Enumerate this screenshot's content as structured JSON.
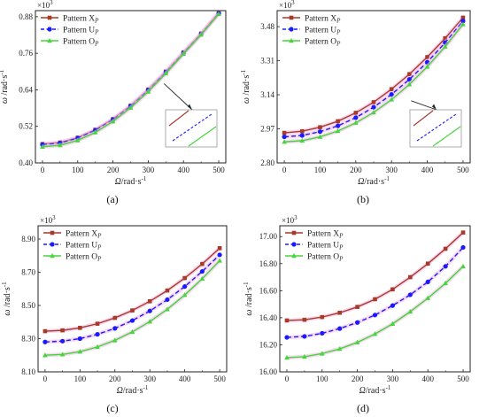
{
  "colors": {
    "X": "#a83a2a",
    "U": "#1a1aff",
    "O": "#44d63a",
    "glow": "#f2b8e4"
  },
  "chart_data": [
    {
      "type": "line",
      "caption": "(a)",
      "xlabel_symbol": "Ω",
      "xlabel_unit": "/rad·s",
      "xlabel_exp": "-1",
      "ylabel_symbol": "ω",
      "ylabel_unit": "/rad·s",
      "ylabel_exp": "-1",
      "scale_base": "×10",
      "scale_exp": "3",
      "xlim": [
        -20,
        520
      ],
      "ylim": [
        0.4,
        0.9
      ],
      "xticks": [
        0,
        100,
        200,
        300,
        400,
        500
      ],
      "yticks": [
        0.4,
        0.52,
        0.64,
        0.76,
        0.88
      ],
      "ytick_labels": [
        "0.40",
        "0.52",
        "0.64",
        "0.76",
        "0.88"
      ],
      "x": [
        0,
        50,
        100,
        150,
        200,
        250,
        300,
        350,
        400,
        450,
        500
      ],
      "inset": true,
      "series": [
        {
          "name": "Pattern X",
          "sub": "P",
          "key": "X",
          "marker": "square",
          "dash": "solid",
          "values": [
            0.462,
            0.467,
            0.483,
            0.509,
            0.544,
            0.588,
            0.641,
            0.7,
            0.763,
            0.825,
            0.893
          ]
        },
        {
          "name": "Pattern U",
          "sub": "P",
          "key": "U",
          "marker": "circle",
          "dash": "dashed",
          "values": [
            0.46,
            0.465,
            0.481,
            0.507,
            0.542,
            0.586,
            0.639,
            0.698,
            0.761,
            0.823,
            0.891
          ]
        },
        {
          "name": "Pattern O",
          "sub": "P",
          "key": "O",
          "marker": "triangle",
          "dash": "solid",
          "values": [
            0.453,
            0.458,
            0.474,
            0.5,
            0.536,
            0.581,
            0.634,
            0.694,
            0.758,
            0.821,
            0.889
          ]
        }
      ]
    },
    {
      "type": "line",
      "caption": "(b)",
      "xlabel_symbol": "Ω",
      "xlabel_unit": "/rad·s",
      "xlabel_exp": "-1",
      "ylabel_symbol": "ω",
      "ylabel_unit": "/rad·s",
      "ylabel_exp": "-1",
      "scale_base": "×10",
      "scale_exp": "3",
      "xlim": [
        -20,
        520
      ],
      "ylim": [
        2.8,
        3.56
      ],
      "xticks": [
        0,
        100,
        200,
        300,
        400,
        500
      ],
      "yticks": [
        2.8,
        2.97,
        3.14,
        3.31,
        3.48
      ],
      "ytick_labels": [
        "2.80",
        "2.97",
        "3.14",
        "3.31",
        "3.48"
      ],
      "x": [
        0,
        50,
        100,
        150,
        200,
        250,
        300,
        350,
        400,
        450,
        500
      ],
      "inset": true,
      "series": [
        {
          "name": "Pattern X",
          "sub": "P",
          "key": "X",
          "marker": "square",
          "dash": "solid",
          "values": [
            2.95,
            2.958,
            2.978,
            3.008,
            3.05,
            3.103,
            3.168,
            3.243,
            3.328,
            3.422,
            3.525
          ]
        },
        {
          "name": "Pattern U",
          "sub": "P",
          "key": "U",
          "marker": "circle",
          "dash": "dashed",
          "values": [
            2.93,
            2.937,
            2.956,
            2.985,
            3.026,
            3.078,
            3.142,
            3.217,
            3.303,
            3.4,
            3.508
          ]
        },
        {
          "name": "Pattern O",
          "sub": "P",
          "key": "O",
          "marker": "triangle",
          "dash": "solid",
          "values": [
            2.905,
            2.911,
            2.93,
            2.959,
            3.0,
            3.052,
            3.116,
            3.192,
            3.28,
            3.38,
            3.492
          ]
        }
      ]
    },
    {
      "type": "line",
      "caption": "(c)",
      "xlabel_symbol": "Ω",
      "xlabel_unit": "/rad·s",
      "xlabel_exp": "-1",
      "ylabel_symbol": "ω",
      "ylabel_unit": "/rad·s",
      "ylabel_exp": "-1",
      "scale_base": "×10",
      "scale_exp": "3",
      "xlim": [
        -20,
        520
      ],
      "ylim": [
        8.1,
        8.98
      ],
      "xticks": [
        0,
        100,
        200,
        300,
        400,
        500
      ],
      "yticks": [
        8.1,
        8.3,
        8.5,
        8.7,
        8.9
      ],
      "ytick_labels": [
        "8.10",
        "8.30",
        "8.50",
        "8.70",
        "8.90"
      ],
      "x": [
        0,
        50,
        100,
        150,
        200,
        250,
        300,
        350,
        400,
        450,
        500
      ],
      "inset": false,
      "series": [
        {
          "name": "Pattern X",
          "sub": "P",
          "key": "X",
          "marker": "square",
          "dash": "solid",
          "values": [
            8.345,
            8.35,
            8.365,
            8.39,
            8.425,
            8.47,
            8.525,
            8.59,
            8.665,
            8.75,
            8.845
          ]
        },
        {
          "name": "Pattern U",
          "sub": "P",
          "key": "U",
          "marker": "circle",
          "dash": "dashed",
          "values": [
            8.28,
            8.285,
            8.3,
            8.326,
            8.362,
            8.409,
            8.467,
            8.535,
            8.614,
            8.705,
            8.805
          ]
        },
        {
          "name": "Pattern O",
          "sub": "P",
          "key": "O",
          "marker": "triangle",
          "dash": "solid",
          "values": [
            8.2,
            8.205,
            8.222,
            8.25,
            8.29,
            8.341,
            8.403,
            8.477,
            8.563,
            8.661,
            8.77
          ]
        }
      ]
    },
    {
      "type": "line",
      "caption": "(d)",
      "xlabel_symbol": "Ω",
      "xlabel_unit": "/rad·s",
      "xlabel_exp": "-1",
      "ylabel_symbol": "ω",
      "ylabel_unit": "/rad·s",
      "ylabel_exp": "-1",
      "scale_base": "×10",
      "scale_exp": "3",
      "xlim": [
        -20,
        520
      ],
      "ylim": [
        16.0,
        17.08
      ],
      "xticks": [
        0,
        100,
        200,
        300,
        400,
        500
      ],
      "yticks": [
        16.0,
        16.2,
        16.4,
        16.6,
        16.8,
        17.0
      ],
      "ytick_labels": [
        "16.00",
        "16.20",
        "16.40",
        "16.60",
        "16.80",
        "17.00"
      ],
      "x": [
        0,
        50,
        100,
        150,
        200,
        250,
        300,
        350,
        400,
        450,
        500
      ],
      "inset": false,
      "series": [
        {
          "name": "Pattern X",
          "sub": "P",
          "key": "X",
          "marker": "square",
          "dash": "solid",
          "values": [
            16.38,
            16.385,
            16.405,
            16.437,
            16.48,
            16.537,
            16.61,
            16.7,
            16.8,
            16.91,
            17.03
          ]
        },
        {
          "name": "Pattern U",
          "sub": "P",
          "key": "U",
          "marker": "circle",
          "dash": "dashed",
          "values": [
            16.255,
            16.262,
            16.285,
            16.32,
            16.365,
            16.42,
            16.49,
            16.57,
            16.665,
            16.78,
            16.92
          ]
        },
        {
          "name": "Pattern O",
          "sub": "P",
          "key": "O",
          "marker": "triangle",
          "dash": "solid",
          "values": [
            16.105,
            16.112,
            16.135,
            16.17,
            16.218,
            16.28,
            16.355,
            16.445,
            16.545,
            16.655,
            16.78
          ]
        }
      ]
    }
  ]
}
